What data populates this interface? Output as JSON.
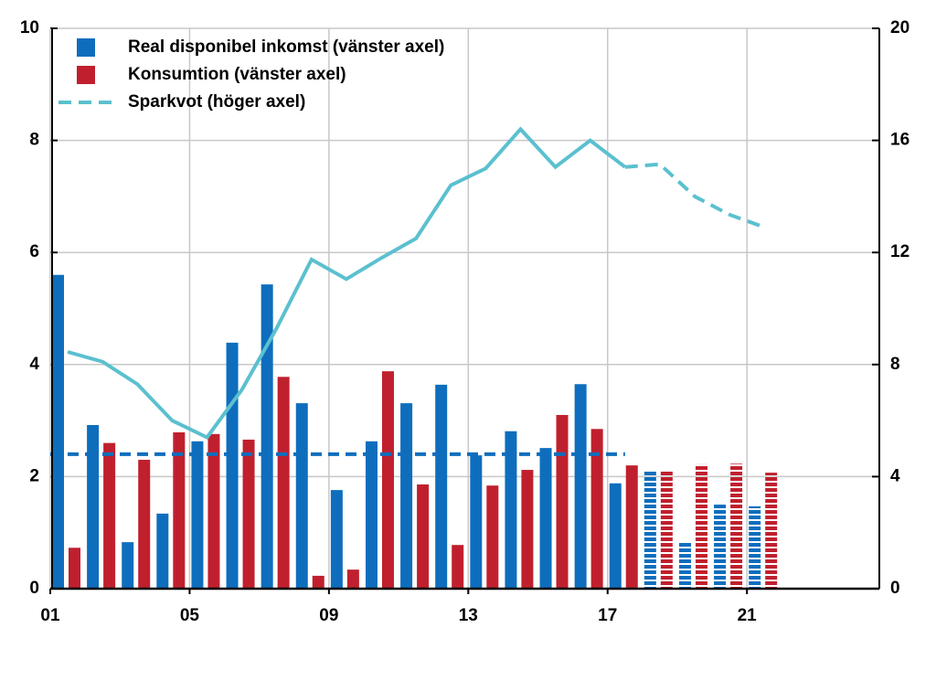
{
  "chart_data": {
    "type": "bar-line",
    "x": [
      2001,
      2002,
      2003,
      2004,
      2005,
      2006,
      2007,
      2008,
      2009,
      2010,
      2011,
      2012,
      2013,
      2014,
      2015,
      2016,
      2017,
      2018,
      2019,
      2020,
      2021
    ],
    "forecast_start": 2018,
    "series": [
      {
        "name": "Real disponibel inkomst (vänster axel)",
        "color": "#0e6ebd",
        "type": "bar",
        "values": [
          5.6,
          2.92,
          0.83,
          1.34,
          2.63,
          4.39,
          5.43,
          3.31,
          1.76,
          2.63,
          3.31,
          3.64,
          2.38,
          2.81,
          2.51,
          3.65,
          1.88,
          2.12,
          0.82,
          1.5,
          1.47
        ]
      },
      {
        "name": "Konsumtion (vänster axel)",
        "color": "#c0202e",
        "type": "bar",
        "values": [
          0.73,
          2.6,
          2.3,
          2.79,
          2.76,
          2.66,
          3.78,
          0.23,
          0.34,
          3.88,
          1.86,
          0.78,
          1.84,
          2.12,
          3.1,
          2.85,
          2.2,
          2.12,
          2.22,
          2.23,
          2.07
        ]
      },
      {
        "name": "Sparkvot (höger axel)",
        "color": "#5bc0cf",
        "type": "line",
        "axis": "y2",
        "values": [
          8.45,
          8.1,
          7.3,
          6.0,
          5.4,
          7.1,
          9.3,
          11.75,
          11.05,
          11.8,
          12.5,
          14.4,
          15.0,
          16.4,
          15.05,
          16.0,
          15.05,
          15.15,
          14.0,
          13.35,
          12.9
        ]
      }
    ],
    "reference_line": {
      "y": 2.4,
      "x": [
        2001,
        2017.5
      ],
      "color": "#0e6ebd"
    },
    "xlim": [
      2001,
      2024.8
    ],
    "xticks": [
      {
        "value": 2001,
        "label": "01"
      },
      {
        "value": 2005,
        "label": "05"
      },
      {
        "value": 2009,
        "label": "09"
      },
      {
        "value": 2013,
        "label": "13"
      },
      {
        "value": 2017,
        "label": "17"
      },
      {
        "value": 2021,
        "label": "21"
      }
    ],
    "ylim": [
      0,
      10
    ],
    "yticks": [
      0,
      2,
      4,
      6,
      8,
      10
    ],
    "y2lim": [
      0,
      20
    ],
    "y2ticks": [
      0,
      4,
      8,
      12,
      16,
      20
    ],
    "grid": true
  }
}
